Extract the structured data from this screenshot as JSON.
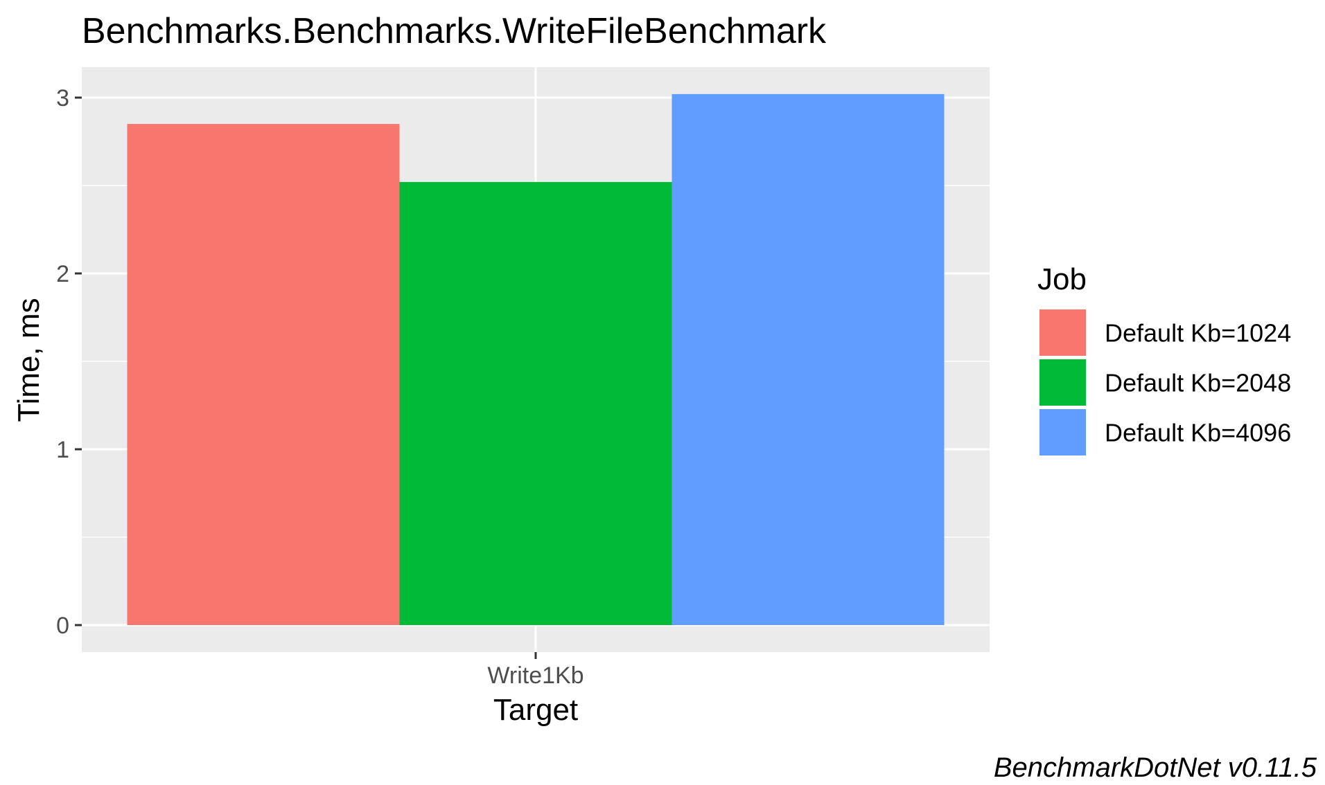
{
  "chart_data": {
    "type": "bar",
    "title": "Benchmarks.Benchmarks.WriteFileBenchmark",
    "xlabel": "Target",
    "ylabel": "Time, ms",
    "categories": [
      "Write1Kb"
    ],
    "series": [
      {
        "name": "Default Kb=1024",
        "values": [
          2.85
        ],
        "color": "#F8766D"
      },
      {
        "name": "Default Kb=2048",
        "values": [
          2.52
        ],
        "color": "#00BA38"
      },
      {
        "name": "Default Kb=4096",
        "values": [
          3.02
        ],
        "color": "#619CFF"
      }
    ],
    "ylim": [
      0,
      3.15
    ],
    "yticks": [
      0,
      1,
      2,
      3
    ],
    "grid": true,
    "panel_background": "#EBEBEB",
    "legend": {
      "title": "Job",
      "position": "right"
    },
    "caption": "BenchmarkDotNet v0.11.5"
  }
}
